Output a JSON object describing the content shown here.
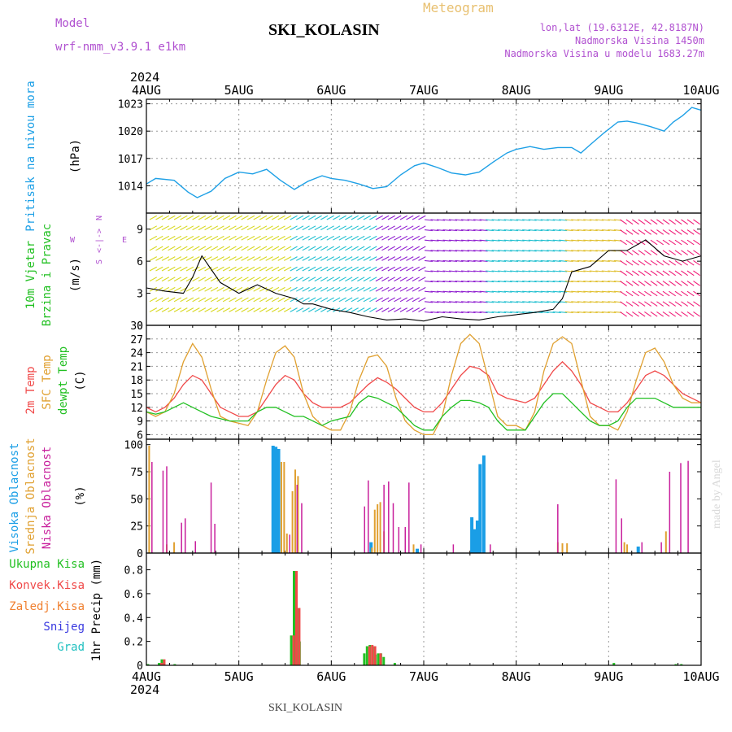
{
  "header": {
    "model_label": "Model",
    "model_value": "wrf-nmm_v3.9.1  e1km",
    "station": "SKI_KOLASIN",
    "meteogram": "Meteogram",
    "lonlat": "lon,lat (19.6312E, 42.8187N)",
    "elevation": "Nadmorska Visina 1450m",
    "model_elevation": "Nadmorska Visina u modelu 1683.27m",
    "year": "2024",
    "credit": "made by Angel",
    "footer_station": "SKI_KOLASIN"
  },
  "colors": {
    "pressure": "#1ea0e6",
    "temp2m": "#f04848",
    "sfc": "#e0a030",
    "dewpt": "#22c022",
    "high_cloud": "#1a9ee6",
    "mid_cloud": "#e0a030",
    "low_cloud": "#c8209c",
    "total_precip": "#22c022",
    "conv_precip": "#f04848",
    "frz_precip": "#f08030",
    "snow": "#3a3ae0",
    "hail": "#20c0c0",
    "model_label": "#b050d0"
  },
  "chart_data": [
    {
      "type": "line",
      "name": "pressure",
      "ylabel": "Pritisak na nivou mora",
      "unit": "(hPa)",
      "ylim": [
        1011,
        1023.5
      ],
      "yticks": [
        1014,
        1017,
        1020,
        1023
      ],
      "x_days": [
        "4AUG",
        "5AUG",
        "6AUG",
        "7AUG",
        "8AUG",
        "9AUG",
        "10AUG"
      ],
      "grid": true,
      "series": [
        {
          "x": [
            0,
            0.1,
            0.3,
            0.45,
            0.55,
            0.7,
            0.85,
            1.0,
            1.15,
            1.3,
            1.45,
            1.6,
            1.75,
            1.9,
            2.0,
            2.15,
            2.3,
            2.45,
            2.6,
            2.75,
            2.9,
            3.0,
            3.15,
            3.3,
            3.45,
            3.6,
            3.75,
            3.9,
            4.0,
            4.15,
            4.3,
            4.45,
            4.6,
            4.7,
            4.8,
            4.95,
            5.1,
            5.2,
            5.3,
            5.45,
            5.6,
            5.7,
            5.8,
            5.9,
            6.0
          ],
          "y": [
            1014.2,
            1014.8,
            1014.6,
            1013.3,
            1012.7,
            1013.4,
            1014.8,
            1015.5,
            1015.3,
            1015.8,
            1014.6,
            1013.6,
            1014.5,
            1015.1,
            1014.8,
            1014.6,
            1014.2,
            1013.7,
            1013.9,
            1015.2,
            1016.2,
            1016.5,
            1016.0,
            1015.4,
            1015.2,
            1015.5,
            1016.6,
            1017.6,
            1018.0,
            1018.3,
            1018.0,
            1018.2,
            1018.2,
            1017.6,
            1018.5,
            1019.8,
            1021.0,
            1021.1,
            1020.9,
            1020.5,
            1020.0,
            1021.0,
            1021.7,
            1022.6,
            1022.3
          ]
        }
      ]
    },
    {
      "type": "wind-barbs",
      "name": "wind",
      "ylabel1": "10m Vjetar",
      "ylabel2": "Brzina i Pravac",
      "unit": "(m/s)",
      "compass": {
        "n": "N",
        "s": "S",
        "e": "E",
        "w": "W"
      },
      "ylim": [
        0,
        10.5
      ],
      "yticks": [
        0,
        3,
        6,
        9
      ],
      "speed_trace": {
        "x": [
          0,
          0.2,
          0.4,
          0.5,
          0.6,
          0.8,
          1.0,
          1.2,
          1.4,
          1.6,
          1.7,
          1.8,
          2.0,
          2.2,
          2.4,
          2.6,
          2.8,
          3.0,
          3.2,
          3.4,
          3.6,
          3.8,
          4.0,
          4.2,
          4.4,
          4.5,
          4.6,
          4.8,
          5.0,
          5.2,
          5.4,
          5.6,
          5.8,
          6.0
        ],
        "y": [
          3.5,
          3.2,
          3.0,
          4.5,
          6.5,
          4.0,
          3.0,
          3.8,
          3.0,
          2.5,
          2.0,
          2.0,
          1.5,
          1.2,
          0.8,
          0.5,
          0.6,
          0.4,
          0.8,
          0.6,
          0.5,
          0.8,
          1.0,
          1.2,
          1.5,
          2.5,
          5.0,
          5.5,
          7.0,
          7.0,
          8.0,
          6.5,
          6.0,
          6.5
        ]
      }
    },
    {
      "type": "line",
      "name": "temperature",
      "ylabel1": "2m Temp",
      "ylabel2": "SFC Temp",
      "ylabel3": "dewpt Temp",
      "unit": "(C)",
      "ylim": [
        5,
        30
      ],
      "yticks": [
        6,
        9,
        12,
        15,
        18,
        21,
        24,
        27,
        30
      ],
      "grid": true,
      "series": [
        {
          "name": "2m Temp",
          "color": "temp2m",
          "x": [
            0,
            0.1,
            0.2,
            0.3,
            0.4,
            0.5,
            0.6,
            0.7,
            0.8,
            0.9,
            1.0,
            1.1,
            1.2,
            1.3,
            1.4,
            1.5,
            1.6,
            1.7,
            1.8,
            1.9,
            2.0,
            2.1,
            2.2,
            2.3,
            2.4,
            2.5,
            2.6,
            2.7,
            2.8,
            2.9,
            3.0,
            3.1,
            3.2,
            3.3,
            3.4,
            3.5,
            3.6,
            3.7,
            3.8,
            3.9,
            4.0,
            4.1,
            4.2,
            4.3,
            4.4,
            4.5,
            4.6,
            4.7,
            4.8,
            4.9,
            5.0,
            5.1,
            5.2,
            5.3,
            5.4,
            5.5,
            5.6,
            5.7,
            5.8,
            5.9,
            6.0
          ],
          "y": [
            12,
            11,
            12,
            14,
            17,
            19,
            18,
            15,
            12,
            11,
            10,
            10,
            11,
            14,
            17,
            19,
            18,
            15,
            13,
            12,
            12,
            12,
            13,
            15,
            17,
            18.5,
            17.5,
            16,
            14,
            12,
            11,
            11,
            13,
            16,
            19,
            21,
            20.5,
            19,
            15,
            14,
            13.5,
            13,
            14,
            17,
            20,
            22,
            20,
            17,
            13,
            12,
            11,
            11,
            13,
            16,
            19,
            20,
            19,
            17,
            15,
            14,
            13
          ]
        },
        {
          "name": "SFC Temp",
          "color": "sfc",
          "x": [
            0,
            0.1,
            0.2,
            0.3,
            0.4,
            0.5,
            0.6,
            0.7,
            0.8,
            0.9,
            1.0,
            1.1,
            1.2,
            1.3,
            1.4,
            1.5,
            1.6,
            1.7,
            1.8,
            1.9,
            2.0,
            2.1,
            2.2,
            2.3,
            2.4,
            2.5,
            2.6,
            2.7,
            2.8,
            2.9,
            3.0,
            3.1,
            3.2,
            3.3,
            3.4,
            3.5,
            3.6,
            3.7,
            3.8,
            3.9,
            4.0,
            4.1,
            4.2,
            4.3,
            4.4,
            4.5,
            4.6,
            4.7,
            4.8,
            4.9,
            5.0,
            5.1,
            5.2,
            5.3,
            5.4,
            5.5,
            5.6,
            5.7,
            5.8,
            5.9,
            6.0
          ],
          "y": [
            11,
            10,
            11,
            15,
            22,
            26,
            23,
            16,
            10,
            9,
            8.5,
            8,
            11,
            18,
            24,
            25.5,
            23,
            15,
            10,
            8,
            7,
            7,
            11,
            18,
            23,
            23.5,
            21,
            14,
            9,
            7,
            6,
            6,
            10,
            19,
            26,
            28,
            26,
            18,
            10,
            8,
            8,
            7,
            11,
            20,
            26,
            27.5,
            26,
            18,
            10,
            8,
            8,
            7,
            11,
            18,
            24,
            25,
            22,
            17,
            14,
            13,
            13
          ]
        },
        {
          "name": "dewpt Temp",
          "color": "dewpt",
          "x": [
            0,
            0.1,
            0.2,
            0.3,
            0.4,
            0.5,
            0.6,
            0.7,
            0.8,
            0.9,
            1.0,
            1.1,
            1.2,
            1.3,
            1.4,
            1.5,
            1.6,
            1.7,
            1.8,
            1.9,
            2.0,
            2.1,
            2.2,
            2.3,
            2.4,
            2.5,
            2.6,
            2.7,
            2.8,
            2.9,
            3.0,
            3.1,
            3.2,
            3.3,
            3.4,
            3.5,
            3.6,
            3.7,
            3.8,
            3.9,
            4.0,
            4.1,
            4.2,
            4.3,
            4.4,
            4.5,
            4.6,
            4.7,
            4.8,
            4.9,
            5.0,
            5.1,
            5.2,
            5.3,
            5.4,
            5.5,
            5.6,
            5.7,
            5.8,
            5.9,
            6.0
          ],
          "y": [
            11,
            10.5,
            11,
            12,
            13,
            12,
            11,
            10,
            9.5,
            9,
            9,
            9,
            11,
            12,
            12,
            11,
            10,
            10,
            9,
            8,
            9,
            9.5,
            10,
            13,
            14.5,
            14,
            13,
            12,
            10,
            8,
            7,
            7,
            10,
            12,
            13.5,
            13.5,
            13,
            12,
            9,
            7,
            7,
            7,
            10,
            13,
            15,
            15,
            13,
            11,
            9,
            8,
            8,
            9,
            12,
            14,
            14,
            14,
            13,
            12,
            12,
            12,
            12
          ]
        }
      ]
    },
    {
      "type": "bar",
      "name": "cloud",
      "ylabel1": "Visoka Oblacnost",
      "ylabel2": "Srednja Oblacnost",
      "ylabel3": "Niska Oblacnost",
      "unit": "(%)",
      "ylim": [
        0,
        105
      ],
      "yticks": [
        0,
        25,
        50,
        75,
        100
      ],
      "series": [
        {
          "name": "Visoka Oblacnost",
          "color": "high_cloud",
          "x": [
            1.37,
            1.4,
            1.43,
            2.43,
            2.93,
            3.52,
            3.55,
            3.58,
            3.61,
            3.65,
            5.32
          ],
          "y": [
            99,
            98,
            96,
            10,
            4,
            33,
            22,
            30,
            82,
            90,
            6
          ]
        },
        {
          "name": "Srednja Oblacnost",
          "color": "mid_cloud",
          "x": [
            0.03,
            0.22,
            0.3,
            1.46,
            1.49,
            1.52,
            1.58,
            1.61,
            1.64,
            2.44,
            2.47,
            2.5,
            2.53,
            2.57,
            2.89,
            4.45,
            4.5,
            4.55,
            5.17,
            5.2,
            5.62
          ],
          "y": [
            99,
            8,
            10,
            84,
            84,
            18,
            57,
            77,
            71,
            5,
            40,
            45,
            47,
            20,
            8,
            10,
            9,
            9,
            10,
            8,
            20
          ]
        },
        {
          "name": "Niska Oblacnost",
          "color": "low_cloud",
          "x": [
            0.06,
            0.18,
            0.22,
            0.38,
            0.42,
            0.53,
            0.7,
            0.74,
            1.55,
            1.63,
            1.68,
            2.36,
            2.4,
            2.57,
            2.62,
            2.67,
            2.73,
            2.8,
            2.84,
            2.97,
            3.32,
            3.72,
            4.45,
            5.08,
            5.14,
            5.36,
            5.57,
            5.66,
            5.78,
            5.86
          ],
          "y": [
            84,
            76,
            80,
            28,
            32,
            11,
            65,
            27,
            17,
            63,
            46,
            43,
            67,
            63,
            66,
            46,
            24,
            24,
            65,
            8,
            8,
            8,
            45,
            68,
            32,
            10,
            10,
            75,
            83,
            85
          ]
        }
      ]
    },
    {
      "type": "bar",
      "name": "precip",
      "ylabel": "1hr Precip (mm)",
      "legend": [
        "Ukupna Kisa",
        "Konvek.Kisa",
        "Zaledj.Kisa",
        "Snijeg",
        "Grad"
      ],
      "ylim": [
        0,
        0.94
      ],
      "yticks": [
        0,
        0.2,
        0.4,
        0.6,
        0.8
      ],
      "series": [
        {
          "name": "Ukupna Kisa",
          "color": "total_precip",
          "x": [
            0.03,
            0.15,
            0.18,
            0.32,
            1.58,
            1.61,
            1.64,
            1.67,
            2.37,
            2.4,
            2.43,
            2.46,
            2.49,
            2.52,
            2.55,
            2.58,
            2.7,
            5.07,
            5.74,
            5.8
          ],
          "y": [
            0.01,
            0.02,
            0.05,
            0.01,
            0.25,
            0.79,
            0.48,
            0.2,
            0.1,
            0.16,
            0.17,
            0.16,
            0.09,
            0.1,
            0.1,
            0.07,
            0.02,
            0.02,
            0.01,
            0.01
          ]
        },
        {
          "name": "Konvek.Kisa",
          "color": "conv_precip",
          "x": [
            0.15,
            0.18,
            1.58,
            1.61,
            1.64,
            2.4,
            2.43,
            2.46,
            2.52
          ],
          "y": [
            0.02,
            0.05,
            0.25,
            0.79,
            0.48,
            0.16,
            0.17,
            0.16,
            0.1
          ]
        }
      ]
    }
  ]
}
